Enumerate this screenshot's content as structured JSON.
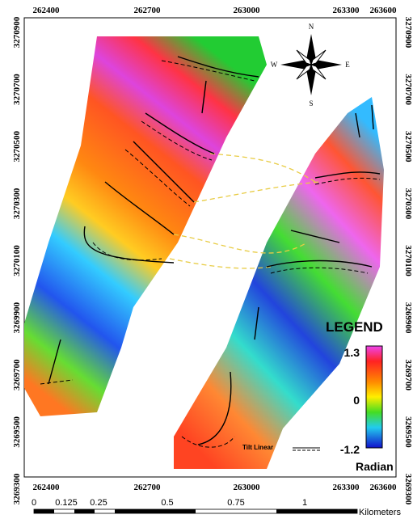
{
  "map": {
    "x_labels": [
      "262400",
      "262700",
      "263000",
      "263300",
      "263600"
    ],
    "y_labels": [
      "3270900",
      "3270700",
      "3270500",
      "3270300",
      "3270100",
      "3269900",
      "3269700",
      "3269500",
      "3269300"
    ],
    "compass": {
      "n": "N",
      "s": "S",
      "e": "E",
      "w": "W"
    },
    "legend": {
      "title": "LEGEND",
      "ticks": [
        "1.3",
        "0",
        "-1.2"
      ],
      "unit": "Radian",
      "line_label": "Tilt Linear"
    },
    "scale_bar": {
      "labels": [
        "0",
        "0.125",
        "0.25",
        "0.5",
        "0.75",
        "1"
      ],
      "unit": "Kilometers"
    }
  }
}
